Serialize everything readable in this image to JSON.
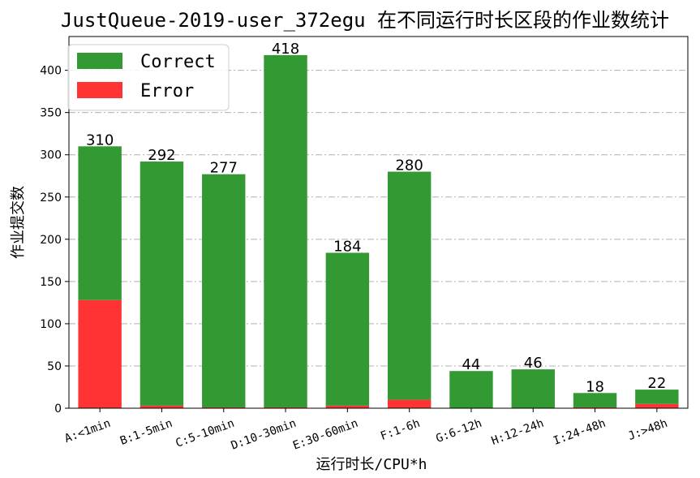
{
  "chart_data": {
    "type": "bar",
    "stacked": true,
    "title": "JustQueue-2019-user_372egu 在不同运行时长区段的作业数统计",
    "xlabel": "运行时长/CPU*h",
    "ylabel": "作业提交数",
    "ylim": [
      0,
      440
    ],
    "yticks": [
      0,
      50,
      100,
      150,
      200,
      250,
      300,
      350,
      400
    ],
    "grid": true,
    "legend_position": "top-left",
    "categories": [
      "A:<1min",
      "B:1-5min",
      "C:5-10min",
      "D:10-30min",
      "E:30-60min",
      "F:1-6h",
      "G:6-12h",
      "H:12-24h",
      "I:24-48h",
      "J:>48h"
    ],
    "totals": [
      310,
      292,
      277,
      418,
      184,
      280,
      44,
      46,
      18,
      22
    ],
    "series": [
      {
        "name": "Error",
        "color": "#ff3333",
        "values": [
          128,
          3,
          1,
          1,
          3,
          10,
          0,
          0,
          1,
          5
        ]
      },
      {
        "name": "Correct",
        "color": "#339933",
        "values": [
          182,
          289,
          276,
          417,
          181,
          270,
          44,
          46,
          17,
          17
        ]
      }
    ]
  }
}
